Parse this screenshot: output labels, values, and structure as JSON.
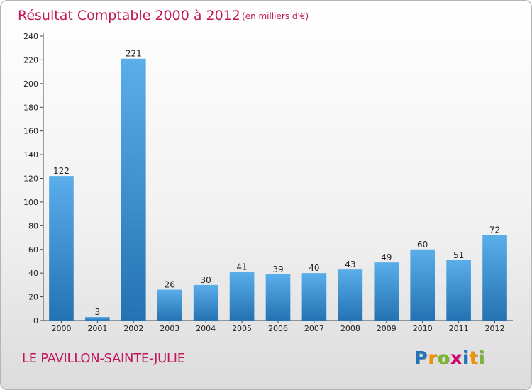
{
  "title": "Résultat Comptable 2000 à 2012",
  "subtitle": "(en milliers d'€)",
  "commune": "LE PAVILLON-SAINTE-JULIE",
  "logo": {
    "letters": [
      "P",
      "r",
      "o",
      "x",
      "i",
      "t",
      "i"
    ],
    "colors": [
      "#1e73be",
      "#f39200",
      "#7ab929",
      "#d6006e",
      "#1e73be",
      "#f39200",
      "#7ab929"
    ]
  },
  "colors": {
    "bar_top": "#5aaeea",
    "bar_bottom": "#2472b2",
    "title": "#c2185b"
  },
  "chart_data": {
    "type": "bar",
    "categories": [
      "2000",
      "2001",
      "2002",
      "2003",
      "2004",
      "2005",
      "2006",
      "2007",
      "2008",
      "2009",
      "2010",
      "2011",
      "2012"
    ],
    "values": [
      122,
      3,
      221,
      26,
      30,
      41,
      39,
      40,
      43,
      49,
      60,
      51,
      72
    ],
    "data_labels": [
      "122",
      "3",
      "221",
      "26",
      "30",
      "41",
      "39",
      "40",
      "43",
      "49",
      "60",
      "51",
      "72"
    ],
    "yticks": [
      "0",
      "20",
      "40",
      "60",
      "80",
      "100",
      "120",
      "140",
      "160",
      "180",
      "200",
      "220",
      "240"
    ],
    "ylim": [
      0,
      240
    ],
    "grid": false,
    "legend": "none"
  }
}
